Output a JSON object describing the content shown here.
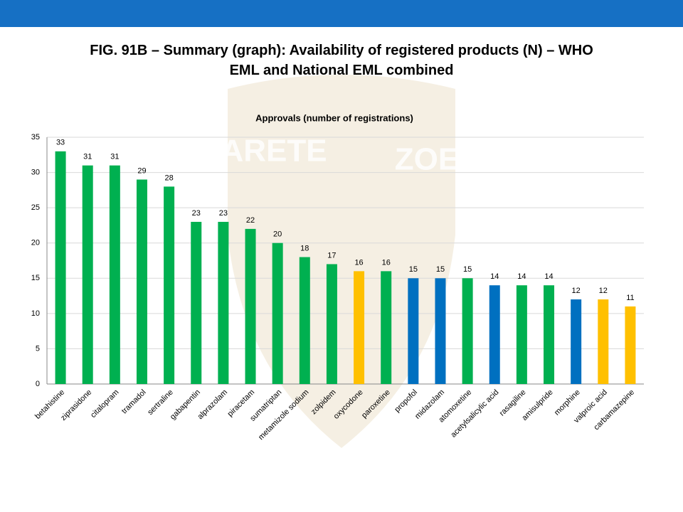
{
  "slide_title": "FIG. 91B – Summary (graph): Availability of registered products (N) – WHO EML and National EML combined",
  "watermark": [
    "ARETE",
    "ZOE"
  ],
  "chart_data": {
    "type": "bar",
    "title": "Approvals (number of registrations)",
    "categories": [
      "betahistine",
      "ziprasidone",
      "citalopram",
      "tramadol",
      "sertraline",
      "gabapentin",
      "alprazolam",
      "piracetam",
      "sumatriptan",
      "metamizole sodium",
      "zolpidem",
      "oxycodone",
      "paroxetine",
      "propofol",
      "midazolam",
      "atomoxetine",
      "acetylsalicylic acid",
      "rasagiline",
      "amisulpride",
      "morphine",
      "valproic acid",
      "carbamazepine"
    ],
    "values": [
      33,
      31,
      31,
      29,
      28,
      23,
      23,
      22,
      20,
      18,
      17,
      16,
      16,
      15,
      15,
      15,
      14,
      14,
      14,
      12,
      12,
      11
    ],
    "colors": [
      "#00b050",
      "#00b050",
      "#00b050",
      "#00b050",
      "#00b050",
      "#00b050",
      "#00b050",
      "#00b050",
      "#00b050",
      "#00b050",
      "#00b050",
      "#ffc000",
      "#00b050",
      "#0070c0",
      "#0070c0",
      "#00b050",
      "#0070c0",
      "#00b050",
      "#00b050",
      "#0070c0",
      "#ffc000",
      "#ffc000"
    ],
    "ylim": [
      0,
      35
    ],
    "yticks": [
      0,
      5,
      10,
      15,
      20,
      25,
      30,
      35
    ],
    "grid": true
  }
}
